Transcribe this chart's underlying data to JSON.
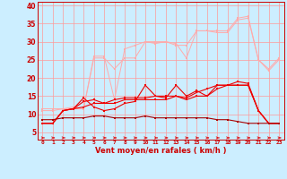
{
  "x": [
    0,
    1,
    2,
    3,
    4,
    5,
    6,
    7,
    8,
    9,
    10,
    11,
    12,
    13,
    14,
    15,
    16,
    17,
    18,
    19,
    20,
    21,
    22,
    23
  ],
  "line1": [
    11.5,
    11.5,
    11.5,
    11.5,
    11.5,
    25.5,
    25.5,
    22.5,
    25.5,
    25.5,
    30,
    29.5,
    30,
    29.5,
    25.5,
    33,
    33,
    32.5,
    32.5,
    36,
    36.5,
    25,
    22.5,
    25.5
  ],
  "line2": [
    11.0,
    11.0,
    11.5,
    12.0,
    11.5,
    26.0,
    26.0,
    14.0,
    28.0,
    29.0,
    30.0,
    30.0,
    30.0,
    29.0,
    29.0,
    33.0,
    33.0,
    33.0,
    33.0,
    36.5,
    37.0,
    25.0,
    22.0,
    25.0
  ],
  "line3": [
    7.5,
    7.5,
    11.0,
    11.5,
    14.5,
    12.0,
    11.0,
    11.5,
    13.0,
    13.5,
    18.0,
    15.0,
    14.5,
    18.0,
    15.0,
    16.5,
    15.0,
    18.0,
    18.0,
    19.0,
    18.5,
    11.0,
    7.5,
    7.5
  ],
  "line4": [
    7.5,
    7.5,
    11.0,
    11.5,
    13.5,
    14.0,
    13.0,
    14.0,
    14.5,
    14.5,
    14.5,
    15.0,
    15.0,
    15.0,
    14.5,
    16.0,
    17.0,
    18.0,
    18.0,
    18.0,
    18.0,
    11.0,
    7.5,
    7.5
  ],
  "line5": [
    7.5,
    7.5,
    11.0,
    11.5,
    12.0,
    13.0,
    13.0,
    13.0,
    14.0,
    14.0,
    14.0,
    14.0,
    14.0,
    15.0,
    14.0,
    15.0,
    15.0,
    17.0,
    18.0,
    18.0,
    18.0,
    11.0,
    7.5,
    7.5
  ],
  "line6": [
    8.5,
    8.5,
    9.0,
    9.0,
    9.0,
    9.5,
    9.5,
    9.0,
    9.0,
    9.0,
    9.5,
    9.0,
    9.0,
    9.0,
    9.0,
    9.0,
    9.0,
    8.5,
    8.5,
    8.0,
    7.5,
    7.5,
    7.5,
    7.5
  ],
  "bg_color": "#cceeff",
  "grid_color": "#ff9999",
  "line1_color": "#ffaaaa",
  "line2_color": "#ffaaaa",
  "line3_color": "#ee0000",
  "line4_color": "#ee0000",
  "line5_color": "#ee0000",
  "line6_color": "#aa0000",
  "arrow_color": "#dd0000",
  "xlabel": "Vent moyen/en rafales ( km/h )",
  "yticks": [
    5,
    10,
    15,
    20,
    25,
    30,
    35,
    40
  ],
  "xticks": [
    0,
    1,
    2,
    3,
    4,
    5,
    6,
    7,
    8,
    9,
    10,
    11,
    12,
    13,
    14,
    15,
    16,
    17,
    18,
    19,
    20,
    21,
    22,
    23
  ],
  "markersize": 2.0
}
